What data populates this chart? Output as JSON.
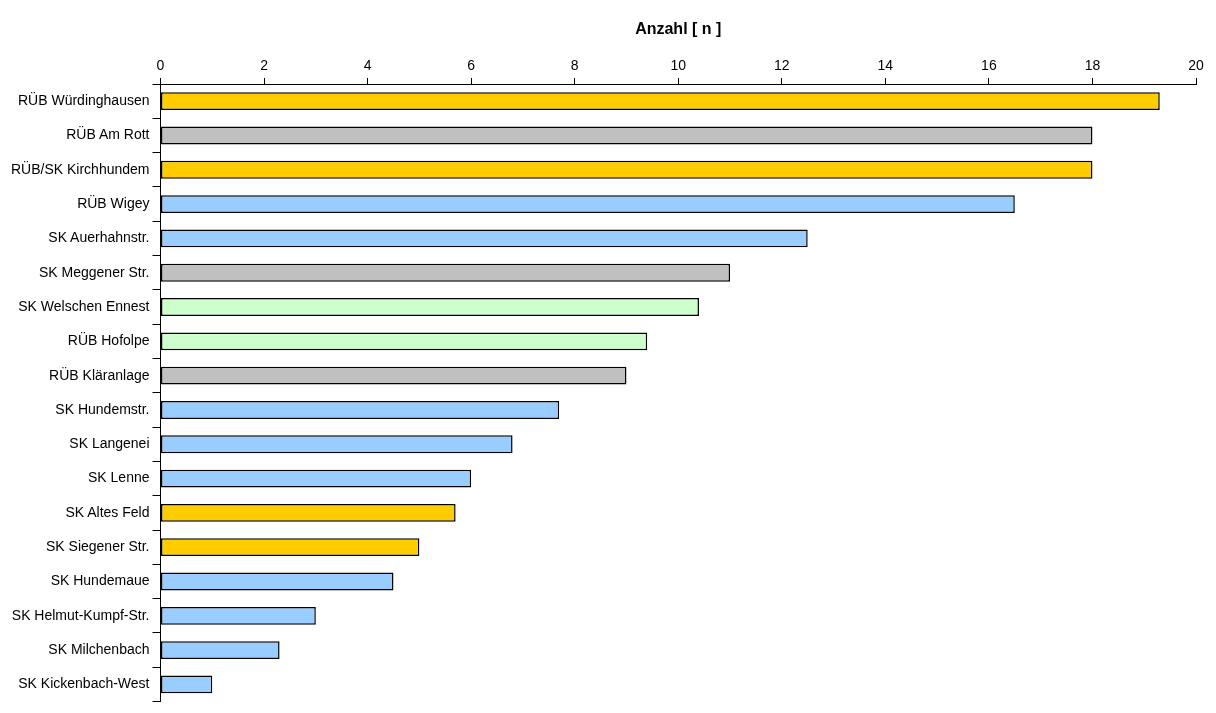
{
  "chart_data": {
    "type": "bar",
    "orientation": "horizontal",
    "xlabel": "Anzahl [ n ]",
    "categories": [
      "RÜB Würdinghausen",
      "RÜB Am Rott",
      "RÜB/SK Kirchhundem",
      "RÜB Wigey",
      "SK Auerhahnstr.",
      "SK Meggener Str.",
      "SK Welschen Ennest",
      "RÜB Hofolpe",
      "RÜB Kläranlage",
      "SK Hundemstr.",
      "SK Langenei",
      "SK Lenne",
      "SK Altes Feld",
      "SK Siegener Str.",
      "SK Hundemaue",
      "SK Helmut-Kumpf-Str.",
      "SK Milchenbach",
      "SK Kickenbach-West"
    ],
    "values": [
      19.3,
      18.0,
      18.0,
      16.5,
      12.5,
      11.0,
      10.4,
      9.4,
      9.0,
      7.7,
      6.8,
      6.0,
      5.7,
      5.0,
      4.5,
      3.0,
      2.3,
      1.0
    ],
    "colors": [
      "#ffcc00",
      "#c0c0c0",
      "#ffcc00",
      "#99ccff",
      "#99ccff",
      "#c0c0c0",
      "#ccffcc",
      "#ccffcc",
      "#c0c0c0",
      "#99ccff",
      "#99ccff",
      "#99ccff",
      "#ffcc00",
      "#ffcc00",
      "#99ccff",
      "#99ccff",
      "#99ccff",
      "#99ccff"
    ],
    "xlim": [
      0,
      20
    ],
    "xticks": [
      0,
      2,
      4,
      6,
      8,
      10,
      12,
      14,
      16,
      18,
      20
    ],
    "grid": false,
    "legend": false
  }
}
